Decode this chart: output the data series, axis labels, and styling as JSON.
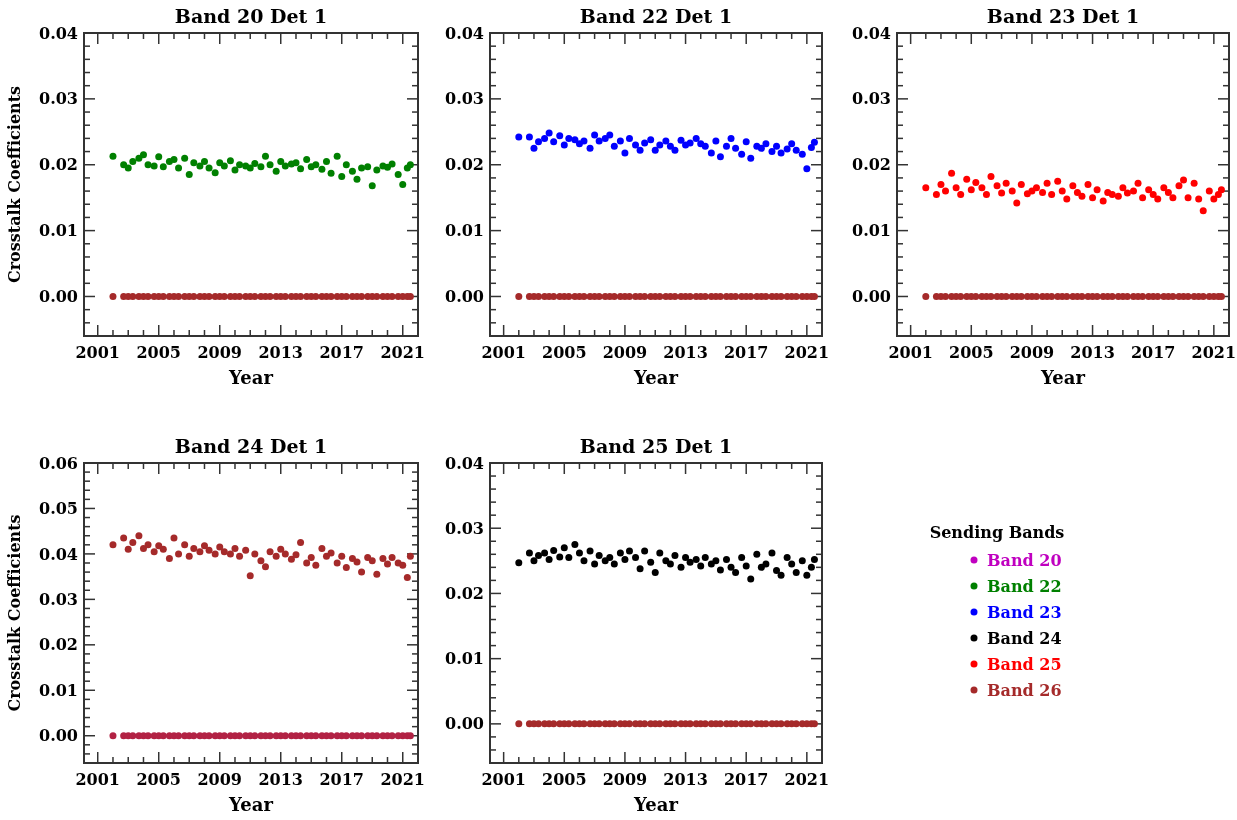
{
  "chart_data": [
    {
      "type": "scatter",
      "title": "Band 20 Det 1",
      "xlabel": "Year",
      "ylabel": "Crosstalk Coefficients",
      "marker": "circle",
      "legend": false,
      "x": [
        2002.0,
        2002.7,
        2003.0,
        2003.3,
        2003.7,
        2004.0,
        2004.3,
        2004.7,
        2005.0,
        2005.3,
        2005.7,
        2006.0,
        2006.3,
        2006.7,
        2007.0,
        2007.3,
        2007.7,
        2008.0,
        2008.3,
        2008.7,
        2009.0,
        2009.3,
        2009.7,
        2010.0,
        2010.3,
        2010.7,
        2011.0,
        2011.3,
        2011.7,
        2012.0,
        2012.3,
        2012.7,
        2013.0,
        2013.3,
        2013.7,
        2014.0,
        2014.3,
        2014.7,
        2015.0,
        2015.3,
        2015.7,
        2016.0,
        2016.3,
        2016.7,
        2017.0,
        2017.3,
        2017.7,
        2018.0,
        2018.3,
        2018.7,
        2019.0,
        2019.3,
        2019.7,
        2020.0,
        2020.3,
        2020.7,
        2021.0,
        2021.3,
        2021.5
      ],
      "xlim": [
        2000.1,
        2022
      ],
      "ylim": [
        -0.006,
        0.04
      ],
      "xticks": [
        {
          "value": 2001,
          "label": "2001"
        },
        {
          "value": 2002,
          "label": null
        },
        {
          "value": 2003,
          "label": null
        },
        {
          "value": 2004,
          "label": null
        },
        {
          "value": 2005,
          "label": "2005"
        },
        {
          "value": 2006,
          "label": null
        },
        {
          "value": 2007,
          "label": null
        },
        {
          "value": 2008,
          "label": null
        },
        {
          "value": 2009,
          "label": "2009"
        },
        {
          "value": 2010,
          "label": null
        },
        {
          "value": 2011,
          "label": null
        },
        {
          "value": 2012,
          "label": null
        },
        {
          "value": 2013,
          "label": "2013"
        },
        {
          "value": 2014,
          "label": null
        },
        {
          "value": 2015,
          "label": null
        },
        {
          "value": 2016,
          "label": null
        },
        {
          "value": 2017,
          "label": "2017"
        },
        {
          "value": 2018,
          "label": null
        },
        {
          "value": 2019,
          "label": null
        },
        {
          "value": 2020,
          "label": null
        },
        {
          "value": 2021,
          "label": "2021"
        }
      ],
      "yticks": [
        {
          "value": -0.004,
          "label": null
        },
        {
          "value": -0.002,
          "label": null
        },
        {
          "value": 0,
          "label": "0.00"
        },
        {
          "value": 0.002,
          "label": null
        },
        {
          "value": 0.004,
          "label": null
        },
        {
          "value": 0.006,
          "label": null
        },
        {
          "value": 0.008,
          "label": null
        },
        {
          "value": 0.01,
          "label": "0.01"
        },
        {
          "value": 0.012,
          "label": null
        },
        {
          "value": 0.014,
          "label": null
        },
        {
          "value": 0.016,
          "label": null
        },
        {
          "value": 0.018,
          "label": null
        },
        {
          "value": 0.02,
          "label": "0.02"
        },
        {
          "value": 0.022,
          "label": null
        },
        {
          "value": 0.024,
          "label": null
        },
        {
          "value": 0.026,
          "label": null
        },
        {
          "value": 0.028,
          "label": null
        },
        {
          "value": 0.03,
          "label": "0.03"
        },
        {
          "value": 0.032,
          "label": null
        },
        {
          "value": 0.034,
          "label": null
        },
        {
          "value": 0.036,
          "label": null
        },
        {
          "value": 0.038,
          "label": null
        },
        {
          "value": 0.04,
          "label": "0.04"
        }
      ],
      "series": [
        {
          "color": "#008000",
          "values": [
            0.0213,
            0.02,
            0.0195,
            0.0205,
            0.021,
            0.0215,
            0.02,
            0.0198,
            0.0212,
            0.0197,
            0.0205,
            0.0208,
            0.0195,
            0.021,
            0.0185,
            0.0203,
            0.0198,
            0.0205,
            0.0195,
            0.0188,
            0.0203,
            0.0198,
            0.0206,
            0.0192,
            0.02,
            0.0198,
            0.0195,
            0.0202,
            0.0197,
            0.0213,
            0.02,
            0.019,
            0.0205,
            0.0198,
            0.0201,
            0.0203,
            0.0194,
            0.0208,
            0.0197,
            0.02,
            0.0193,
            0.0205,
            0.0187,
            0.0213,
            0.0182,
            0.02,
            0.019,
            0.0178,
            0.0195,
            0.0197,
            0.0168,
            0.0192,
            0.0198,
            0.0196,
            0.0201,
            0.0185,
            0.017,
            0.0195,
            0.02
          ]
        },
        {
          "color": "#a52a2a",
          "values": [
            0,
            0,
            0,
            0,
            0,
            0,
            0,
            0,
            0,
            0,
            0,
            0,
            0,
            0,
            0,
            0,
            0,
            0,
            0,
            0,
            0,
            0,
            0,
            0,
            0,
            0,
            0,
            0,
            0,
            0,
            0,
            0,
            0,
            0,
            0,
            0,
            0,
            0,
            0,
            0,
            0,
            0,
            0,
            0,
            0,
            0,
            0,
            0,
            0,
            0,
            0,
            0,
            0,
            0,
            0,
            0,
            0,
            0,
            0
          ]
        }
      ]
    },
    {
      "type": "scatter",
      "title": "Band 22 Det 1",
      "xlabel": "Year",
      "marker": "circle",
      "legend": false,
      "x": [
        2002.0,
        2002.7,
        2003.0,
        2003.3,
        2003.7,
        2004.0,
        2004.3,
        2004.7,
        2005.0,
        2005.3,
        2005.7,
        2006.0,
        2006.3,
        2006.7,
        2007.0,
        2007.3,
        2007.7,
        2008.0,
        2008.3,
        2008.7,
        2009.0,
        2009.3,
        2009.7,
        2010.0,
        2010.3,
        2010.7,
        2011.0,
        2011.3,
        2011.7,
        2012.0,
        2012.3,
        2012.7,
        2013.0,
        2013.3,
        2013.7,
        2014.0,
        2014.3,
        2014.7,
        2015.0,
        2015.3,
        2015.7,
        2016.0,
        2016.3,
        2016.7,
        2017.0,
        2017.3,
        2017.7,
        2018.0,
        2018.3,
        2018.7,
        2019.0,
        2019.3,
        2019.7,
        2020.0,
        2020.3,
        2020.7,
        2021.0,
        2021.3,
        2021.5
      ],
      "xlim": [
        2000.1,
        2022
      ],
      "ylim": [
        -0.006,
        0.04
      ],
      "xticks": [
        {
          "value": 2001,
          "label": "2001"
        },
        {
          "value": 2002,
          "label": null
        },
        {
          "value": 2003,
          "label": null
        },
        {
          "value": 2004,
          "label": null
        },
        {
          "value": 2005,
          "label": "2005"
        },
        {
          "value": 2006,
          "label": null
        },
        {
          "value": 2007,
          "label": null
        },
        {
          "value": 2008,
          "label": null
        },
        {
          "value": 2009,
          "label": "2009"
        },
        {
          "value": 2010,
          "label": null
        },
        {
          "value": 2011,
          "label": null
        },
        {
          "value": 2012,
          "label": null
        },
        {
          "value": 2013,
          "label": "2013"
        },
        {
          "value": 2014,
          "label": null
        },
        {
          "value": 2015,
          "label": null
        },
        {
          "value": 2016,
          "label": null
        },
        {
          "value": 2017,
          "label": "2017"
        },
        {
          "value": 2018,
          "label": null
        },
        {
          "value": 2019,
          "label": null
        },
        {
          "value": 2020,
          "label": null
        },
        {
          "value": 2021,
          "label": "2021"
        }
      ],
      "yticks": [
        {
          "value": -0.004,
          "label": null
        },
        {
          "value": -0.002,
          "label": null
        },
        {
          "value": 0,
          "label": "0.00"
        },
        {
          "value": 0.002,
          "label": null
        },
        {
          "value": 0.004,
          "label": null
        },
        {
          "value": 0.006,
          "label": null
        },
        {
          "value": 0.008,
          "label": null
        },
        {
          "value": 0.01,
          "label": "0.01"
        },
        {
          "value": 0.012,
          "label": null
        },
        {
          "value": 0.014,
          "label": null
        },
        {
          "value": 0.016,
          "label": null
        },
        {
          "value": 0.018,
          "label": null
        },
        {
          "value": 0.02,
          "label": "0.02"
        },
        {
          "value": 0.022,
          "label": null
        },
        {
          "value": 0.024,
          "label": null
        },
        {
          "value": 0.026,
          "label": null
        },
        {
          "value": 0.028,
          "label": null
        },
        {
          "value": 0.03,
          "label": "0.03"
        },
        {
          "value": 0.032,
          "label": null
        },
        {
          "value": 0.034,
          "label": null
        },
        {
          "value": 0.036,
          "label": null
        },
        {
          "value": 0.038,
          "label": null
        },
        {
          "value": 0.04,
          "label": "0.04"
        }
      ],
      "series": [
        {
          "color": "#0000ff",
          "values": [
            0.0242,
            0.0242,
            0.0225,
            0.0235,
            0.024,
            0.0248,
            0.0235,
            0.0244,
            0.023,
            0.024,
            0.0238,
            0.0232,
            0.0236,
            0.0225,
            0.0245,
            0.0236,
            0.024,
            0.0245,
            0.0228,
            0.0236,
            0.0218,
            0.024,
            0.023,
            0.0222,
            0.0233,
            0.0238,
            0.0222,
            0.023,
            0.0236,
            0.0228,
            0.0222,
            0.0237,
            0.023,
            0.0233,
            0.024,
            0.0232,
            0.0228,
            0.0218,
            0.0236,
            0.0212,
            0.0228,
            0.024,
            0.0225,
            0.0216,
            0.0235,
            0.021,
            0.0228,
            0.0225,
            0.0232,
            0.022,
            0.0228,
            0.0218,
            0.0224,
            0.0232,
            0.0222,
            0.0216,
            0.0194,
            0.0226,
            0.0234
          ]
        },
        {
          "color": "#a52a2a",
          "values": [
            0,
            0,
            0,
            0,
            0,
            0,
            0,
            0,
            0,
            0,
            0,
            0,
            0,
            0,
            0,
            0,
            0,
            0,
            0,
            0,
            0,
            0,
            0,
            0,
            0,
            0,
            0,
            0,
            0,
            0,
            0,
            0,
            0,
            0,
            0,
            0,
            0,
            0,
            0,
            0,
            0,
            0,
            0,
            0,
            0,
            0,
            0,
            0,
            0,
            0,
            0,
            0,
            0,
            0,
            0,
            0,
            0,
            0,
            0
          ]
        }
      ]
    },
    {
      "type": "scatter",
      "title": "Band 23 Det 1",
      "xlabel": "Year",
      "marker": "circle",
      "legend": false,
      "x": [
        2002.0,
        2002.7,
        2003.0,
        2003.3,
        2003.7,
        2004.0,
        2004.3,
        2004.7,
        2005.0,
        2005.3,
        2005.7,
        2006.0,
        2006.3,
        2006.7,
        2007.0,
        2007.3,
        2007.7,
        2008.0,
        2008.3,
        2008.7,
        2009.0,
        2009.3,
        2009.7,
        2010.0,
        2010.3,
        2010.7,
        2011.0,
        2011.3,
        2011.7,
        2012.0,
        2012.3,
        2012.7,
        2013.0,
        2013.3,
        2013.7,
        2014.0,
        2014.3,
        2014.7,
        2015.0,
        2015.3,
        2015.7,
        2016.0,
        2016.3,
        2016.7,
        2017.0,
        2017.3,
        2017.7,
        2018.0,
        2018.3,
        2018.7,
        2019.0,
        2019.3,
        2019.7,
        2020.0,
        2020.3,
        2020.7,
        2021.0,
        2021.3,
        2021.5
      ],
      "xlim": [
        2000.1,
        2022
      ],
      "ylim": [
        -0.006,
        0.04
      ],
      "xticks": [
        {
          "value": 2001,
          "label": "2001"
        },
        {
          "value": 2002,
          "label": null
        },
        {
          "value": 2003,
          "label": null
        },
        {
          "value": 2004,
          "label": null
        },
        {
          "value": 2005,
          "label": "2005"
        },
        {
          "value": 2006,
          "label": null
        },
        {
          "value": 2007,
          "label": null
        },
        {
          "value": 2008,
          "label": null
        },
        {
          "value": 2009,
          "label": "2009"
        },
        {
          "value": 2010,
          "label": null
        },
        {
          "value": 2011,
          "label": null
        },
        {
          "value": 2012,
          "label": null
        },
        {
          "value": 2013,
          "label": "2013"
        },
        {
          "value": 2014,
          "label": null
        },
        {
          "value": 2015,
          "label": null
        },
        {
          "value": 2016,
          "label": null
        },
        {
          "value": 2017,
          "label": "2017"
        },
        {
          "value": 2018,
          "label": null
        },
        {
          "value": 2019,
          "label": null
        },
        {
          "value": 2020,
          "label": null
        },
        {
          "value": 2021,
          "label": "2021"
        }
      ],
      "yticks": [
        {
          "value": -0.004,
          "label": null
        },
        {
          "value": -0.002,
          "label": null
        },
        {
          "value": 0,
          "label": "0.00"
        },
        {
          "value": 0.002,
          "label": null
        },
        {
          "value": 0.004,
          "label": null
        },
        {
          "value": 0.006,
          "label": null
        },
        {
          "value": 0.008,
          "label": null
        },
        {
          "value": 0.01,
          "label": "0.01"
        },
        {
          "value": 0.012,
          "label": null
        },
        {
          "value": 0.014,
          "label": null
        },
        {
          "value": 0.016,
          "label": null
        },
        {
          "value": 0.018,
          "label": null
        },
        {
          "value": 0.02,
          "label": "0.02"
        },
        {
          "value": 0.022,
          "label": null
        },
        {
          "value": 0.024,
          "label": null
        },
        {
          "value": 0.026,
          "label": null
        },
        {
          "value": 0.028,
          "label": null
        },
        {
          "value": 0.03,
          "label": "0.03"
        },
        {
          "value": 0.032,
          "label": null
        },
        {
          "value": 0.034,
          "label": null
        },
        {
          "value": 0.036,
          "label": null
        },
        {
          "value": 0.038,
          "label": null
        },
        {
          "value": 0.04,
          "label": "0.04"
        }
      ],
      "series": [
        {
          "color": "#ff0000",
          "values": [
            0.0165,
            0.0155,
            0.017,
            0.016,
            0.0187,
            0.0165,
            0.0155,
            0.0178,
            0.0162,
            0.0173,
            0.0165,
            0.0155,
            0.0182,
            0.0168,
            0.0157,
            0.0172,
            0.016,
            0.0142,
            0.017,
            0.0156,
            0.016,
            0.0165,
            0.0158,
            0.0172,
            0.0155,
            0.0175,
            0.016,
            0.0148,
            0.0168,
            0.0158,
            0.0152,
            0.017,
            0.015,
            0.0162,
            0.0145,
            0.0158,
            0.0155,
            0.0152,
            0.0165,
            0.0157,
            0.016,
            0.0172,
            0.015,
            0.0162,
            0.0155,
            0.0148,
            0.0165,
            0.0158,
            0.015,
            0.0168,
            0.0177,
            0.015,
            0.0172,
            0.0148,
            0.013,
            0.016,
            0.0148,
            0.0155,
            0.0162
          ]
        },
        {
          "color": "#a52a2a",
          "values": [
            0,
            0,
            0,
            0,
            0,
            0,
            0,
            0,
            0,
            0,
            0,
            0,
            0,
            0,
            0,
            0,
            0,
            0,
            0,
            0,
            0,
            0,
            0,
            0,
            0,
            0,
            0,
            0,
            0,
            0,
            0,
            0,
            0,
            0,
            0,
            0,
            0,
            0,
            0,
            0,
            0,
            0,
            0,
            0,
            0,
            0,
            0,
            0,
            0,
            0,
            0,
            0,
            0,
            0,
            0,
            0,
            0,
            0,
            0
          ]
        }
      ]
    },
    {
      "type": "scatter",
      "title": "Band 24 Det 1",
      "xlabel": "Year",
      "ylabel": "Crosstalk Coefficients",
      "marker": "circle",
      "legend": false,
      "x": [
        2002.0,
        2002.7,
        2003.0,
        2003.3,
        2003.7,
        2004.0,
        2004.3,
        2004.7,
        2005.0,
        2005.3,
        2005.7,
        2006.0,
        2006.3,
        2006.7,
        2007.0,
        2007.3,
        2007.7,
        2008.0,
        2008.3,
        2008.7,
        2009.0,
        2009.3,
        2009.7,
        2010.0,
        2010.3,
        2010.7,
        2011.0,
        2011.3,
        2011.7,
        2012.0,
        2012.3,
        2012.7,
        2013.0,
        2013.3,
        2013.7,
        2014.0,
        2014.3,
        2014.7,
        2015.0,
        2015.3,
        2015.7,
        2016.0,
        2016.3,
        2016.7,
        2017.0,
        2017.3,
        2017.7,
        2018.0,
        2018.3,
        2018.7,
        2019.0,
        2019.3,
        2019.7,
        2020.0,
        2020.3,
        2020.7,
        2021.0,
        2021.3,
        2021.5
      ],
      "xlim": [
        2000.1,
        2022
      ],
      "ylim": [
        -0.006,
        0.06
      ],
      "xticks": [
        {
          "value": 2001,
          "label": "2001"
        },
        {
          "value": 2002,
          "label": null
        },
        {
          "value": 2003,
          "label": null
        },
        {
          "value": 2004,
          "label": null
        },
        {
          "value": 2005,
          "label": "2005"
        },
        {
          "value": 2006,
          "label": null
        },
        {
          "value": 2007,
          "label": null
        },
        {
          "value": 2008,
          "label": null
        },
        {
          "value": 2009,
          "label": "2009"
        },
        {
          "value": 2010,
          "label": null
        },
        {
          "value": 2011,
          "label": null
        },
        {
          "value": 2012,
          "label": null
        },
        {
          "value": 2013,
          "label": "2013"
        },
        {
          "value": 2014,
          "label": null
        },
        {
          "value": 2015,
          "label": null
        },
        {
          "value": 2016,
          "label": null
        },
        {
          "value": 2017,
          "label": "2017"
        },
        {
          "value": 2018,
          "label": null
        },
        {
          "value": 2019,
          "label": null
        },
        {
          "value": 2020,
          "label": null
        },
        {
          "value": 2021,
          "label": "2021"
        }
      ],
      "yticks": [
        {
          "value": -0.004,
          "label": null
        },
        {
          "value": -0.002,
          "label": null
        },
        {
          "value": 0,
          "label": "0.00"
        },
        {
          "value": 0.002,
          "label": null
        },
        {
          "value": 0.004,
          "label": null
        },
        {
          "value": 0.006,
          "label": null
        },
        {
          "value": 0.008,
          "label": null
        },
        {
          "value": 0.01,
          "label": "0.01"
        },
        {
          "value": 0.012,
          "label": null
        },
        {
          "value": 0.014,
          "label": null
        },
        {
          "value": 0.016,
          "label": null
        },
        {
          "value": 0.018,
          "label": null
        },
        {
          "value": 0.02,
          "label": "0.02"
        },
        {
          "value": 0.022,
          "label": null
        },
        {
          "value": 0.024,
          "label": null
        },
        {
          "value": 0.026,
          "label": null
        },
        {
          "value": 0.028,
          "label": null
        },
        {
          "value": 0.03,
          "label": "0.03"
        },
        {
          "value": 0.032,
          "label": null
        },
        {
          "value": 0.034,
          "label": null
        },
        {
          "value": 0.036,
          "label": null
        },
        {
          "value": 0.038,
          "label": null
        },
        {
          "value": 0.04,
          "label": "0.04"
        },
        {
          "value": 0.042,
          "label": null
        },
        {
          "value": 0.044,
          "label": null
        },
        {
          "value": 0.046,
          "label": null
        },
        {
          "value": 0.048,
          "label": null
        },
        {
          "value": 0.05,
          "label": "0.05"
        },
        {
          "value": 0.052,
          "label": null
        },
        {
          "value": 0.054,
          "label": null
        },
        {
          "value": 0.056,
          "label": null
        },
        {
          "value": 0.058,
          "label": null
        },
        {
          "value": 0.06,
          "label": "0.06"
        }
      ],
      "series": [
        {
          "color": "#a52a2a",
          "values": [
            0.042,
            0.0435,
            0.041,
            0.0425,
            0.044,
            0.0412,
            0.042,
            0.0405,
            0.0418,
            0.041,
            0.039,
            0.0435,
            0.04,
            0.042,
            0.0395,
            0.0412,
            0.0405,
            0.0418,
            0.0408,
            0.04,
            0.0415,
            0.0405,
            0.04,
            0.0412,
            0.0395,
            0.0408,
            0.0352,
            0.04,
            0.0385,
            0.0372,
            0.0405,
            0.0395,
            0.041,
            0.04,
            0.0388,
            0.0398,
            0.0425,
            0.038,
            0.0392,
            0.0375,
            0.0412,
            0.0395,
            0.0402,
            0.038,
            0.0395,
            0.037,
            0.039,
            0.0382,
            0.036,
            0.0392,
            0.0385,
            0.0355,
            0.039,
            0.0378,
            0.0392,
            0.038,
            0.0375,
            0.0348,
            0.0395
          ]
        },
        {
          "color": "#b22244",
          "values": [
            0,
            0,
            0,
            0,
            0,
            0,
            0,
            0,
            0,
            0,
            0,
            0,
            0,
            0,
            0,
            0,
            0,
            0,
            0,
            0,
            0,
            0,
            0,
            0,
            0,
            0,
            0,
            0,
            0,
            0,
            0,
            0,
            0,
            0,
            0,
            0,
            0,
            0,
            0,
            0,
            0,
            0,
            0,
            0,
            0,
            0,
            0,
            0,
            0,
            0,
            0,
            0,
            0,
            0,
            0,
            0,
            0,
            0,
            0
          ]
        }
      ]
    },
    {
      "type": "scatter",
      "title": "Band 25 Det 1",
      "xlabel": "Year",
      "marker": "circle",
      "legend": "right",
      "legend_title": "Sending Bands",
      "x": [
        2002.0,
        2002.7,
        2003.0,
        2003.3,
        2003.7,
        2004.0,
        2004.3,
        2004.7,
        2005.0,
        2005.3,
        2005.7,
        2006.0,
        2006.3,
        2006.7,
        2007.0,
        2007.3,
        2007.7,
        2008.0,
        2008.3,
        2008.7,
        2009.0,
        2009.3,
        2009.7,
        2010.0,
        2010.3,
        2010.7,
        2011.0,
        2011.3,
        2011.7,
        2012.0,
        2012.3,
        2012.7,
        2013.0,
        2013.3,
        2013.7,
        2014.0,
        2014.3,
        2014.7,
        2015.0,
        2015.3,
        2015.7,
        2016.0,
        2016.3,
        2016.7,
        2017.0,
        2017.3,
        2017.7,
        2018.0,
        2018.3,
        2018.7,
        2019.0,
        2019.3,
        2019.7,
        2020.0,
        2020.3,
        2020.7,
        2021.0,
        2021.3,
        2021.5
      ],
      "xlim": [
        2000.1,
        2022
      ],
      "ylim": [
        -0.006,
        0.04
      ],
      "xticks": [
        {
          "value": 2001,
          "label": "2001"
        },
        {
          "value": 2002,
          "label": null
        },
        {
          "value": 2003,
          "label": null
        },
        {
          "value": 2004,
          "label": null
        },
        {
          "value": 2005,
          "label": "2005"
        },
        {
          "value": 2006,
          "label": null
        },
        {
          "value": 2007,
          "label": null
        },
        {
          "value": 2008,
          "label": null
        },
        {
          "value": 2009,
          "label": "2009"
        },
        {
          "value": 2010,
          "label": null
        },
        {
          "value": 2011,
          "label": null
        },
        {
          "value": 2012,
          "label": null
        },
        {
          "value": 2013,
          "label": "2013"
        },
        {
          "value": 2014,
          "label": null
        },
        {
          "value": 2015,
          "label": null
        },
        {
          "value": 2016,
          "label": null
        },
        {
          "value": 2017,
          "label": "2017"
        },
        {
          "value": 2018,
          "label": null
        },
        {
          "value": 2019,
          "label": null
        },
        {
          "value": 2020,
          "label": null
        },
        {
          "value": 2021,
          "label": "2021"
        }
      ],
      "yticks": [
        {
          "value": -0.004,
          "label": null
        },
        {
          "value": -0.002,
          "label": null
        },
        {
          "value": 0,
          "label": "0.00"
        },
        {
          "value": 0.002,
          "label": null
        },
        {
          "value": 0.004,
          "label": null
        },
        {
          "value": 0.006,
          "label": null
        },
        {
          "value": 0.008,
          "label": null
        },
        {
          "value": 0.01,
          "label": "0.01"
        },
        {
          "value": 0.012,
          "label": null
        },
        {
          "value": 0.014,
          "label": null
        },
        {
          "value": 0.016,
          "label": null
        },
        {
          "value": 0.018,
          "label": null
        },
        {
          "value": 0.02,
          "label": "0.02"
        },
        {
          "value": 0.022,
          "label": null
        },
        {
          "value": 0.024,
          "label": null
        },
        {
          "value": 0.026,
          "label": null
        },
        {
          "value": 0.028,
          "label": null
        },
        {
          "value": 0.03,
          "label": "0.03"
        },
        {
          "value": 0.032,
          "label": null
        },
        {
          "value": 0.034,
          "label": null
        },
        {
          "value": 0.036,
          "label": null
        },
        {
          "value": 0.038,
          "label": null
        },
        {
          "value": 0.04,
          "label": "0.04"
        }
      ],
      "series": [
        {
          "name": "Band 20",
          "color": "#c000c0",
          "values": [
            null,
            null,
            null,
            null,
            null,
            null,
            null,
            null,
            null,
            null,
            null,
            null,
            null,
            null,
            null,
            null,
            null,
            null,
            null,
            null,
            null,
            null,
            null,
            null,
            null,
            null,
            null,
            null,
            null,
            null,
            null,
            null,
            null,
            null,
            null,
            null,
            null,
            null,
            null,
            null,
            null,
            null,
            null,
            null,
            null,
            null,
            null,
            null,
            null,
            null,
            null,
            null,
            null,
            null,
            null,
            null,
            null,
            null,
            null
          ]
        },
        {
          "name": "Band 22",
          "color": "#008000",
          "values": [
            null,
            null,
            null,
            null,
            null,
            null,
            null,
            null,
            null,
            null,
            null,
            null,
            null,
            null,
            null,
            null,
            null,
            null,
            null,
            null,
            null,
            null,
            null,
            null,
            null,
            null,
            null,
            null,
            null,
            null,
            null,
            null,
            null,
            null,
            null,
            null,
            null,
            null,
            null,
            null,
            null,
            null,
            null,
            null,
            null,
            null,
            null,
            null,
            null,
            null,
            null,
            null,
            null,
            null,
            null,
            null,
            null,
            null,
            null
          ]
        },
        {
          "name": "Band 23",
          "color": "#0000ff",
          "values": [
            null,
            null,
            null,
            null,
            null,
            null,
            null,
            null,
            null,
            null,
            null,
            null,
            null,
            null,
            null,
            null,
            null,
            null,
            null,
            null,
            null,
            null,
            null,
            null,
            null,
            null,
            null,
            null,
            null,
            null,
            null,
            null,
            null,
            null,
            null,
            null,
            null,
            null,
            null,
            null,
            null,
            null,
            null,
            null,
            null,
            null,
            null,
            null,
            null,
            null,
            null,
            null,
            null,
            null,
            null,
            null,
            null,
            null,
            null
          ]
        },
        {
          "name": "Band 24",
          "color": "#000000",
          "values": [
            0.0247,
            0.0262,
            0.025,
            0.0258,
            0.0262,
            0.0252,
            0.0266,
            0.0256,
            0.027,
            0.0255,
            0.0275,
            0.0262,
            0.025,
            0.0265,
            0.0245,
            0.0258,
            0.025,
            0.0255,
            0.0245,
            0.0262,
            0.0252,
            0.0265,
            0.0255,
            0.0238,
            0.0265,
            0.0248,
            0.0232,
            0.0262,
            0.025,
            0.0245,
            0.0258,
            0.024,
            0.0255,
            0.0248,
            0.0252,
            0.0242,
            0.0255,
            0.0245,
            0.025,
            0.0236,
            0.0252,
            0.024,
            0.0232,
            0.0255,
            0.0242,
            0.0222,
            0.026,
            0.024,
            0.0245,
            0.0262,
            0.0235,
            0.0228,
            0.0255,
            0.0245,
            0.0232,
            0.025,
            0.0228,
            0.024,
            0.0252
          ]
        },
        {
          "name": "Band 25",
          "color": "#ff0000",
          "values": [
            null,
            null,
            null,
            null,
            null,
            null,
            null,
            null,
            null,
            null,
            null,
            null,
            null,
            null,
            null,
            null,
            null,
            null,
            null,
            null,
            null,
            null,
            null,
            null,
            null,
            null,
            null,
            null,
            null,
            null,
            null,
            null,
            null,
            null,
            null,
            null,
            null,
            null,
            null,
            null,
            null,
            null,
            null,
            null,
            null,
            null,
            null,
            null,
            null,
            null,
            null,
            null,
            null,
            null,
            null,
            null,
            null,
            null,
            null
          ]
        },
        {
          "name": "Band 26",
          "color": "#a52a2a",
          "values": [
            0,
            0,
            0,
            0,
            0,
            0,
            0,
            0,
            0,
            0,
            0,
            0,
            0,
            0,
            0,
            0,
            0,
            0,
            0,
            0,
            0,
            0,
            0,
            0,
            0,
            0,
            0,
            0,
            0,
            0,
            0,
            0,
            0,
            0,
            0,
            0,
            0,
            0,
            0,
            0,
            0,
            0,
            0,
            0,
            0,
            0,
            0,
            0,
            0,
            0,
            0,
            0,
            0,
            0,
            0,
            0,
            0,
            0,
            0
          ]
        }
      ]
    }
  ]
}
